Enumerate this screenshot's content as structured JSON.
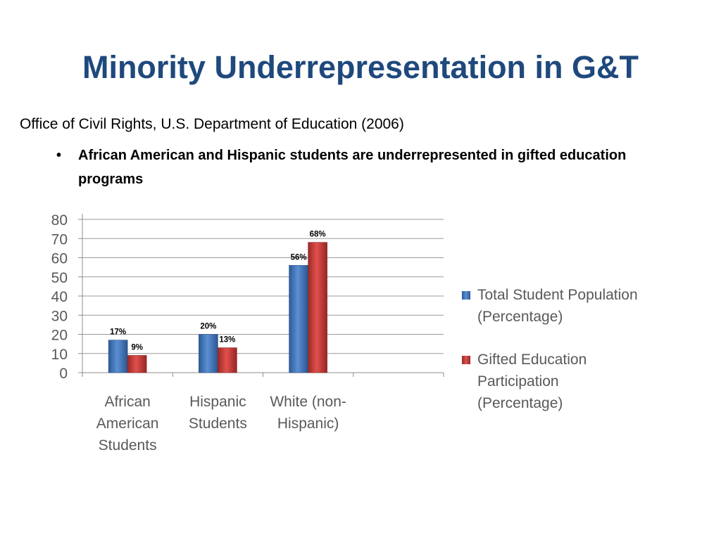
{
  "slide": {
    "title": "Minority Underrepresentation in G&T",
    "source": "Office of Civil Rights, U.S. Department of Education (2006)",
    "bullet": "African American and Hispanic students are underrepresented in gifted education programs"
  },
  "chart_data": {
    "type": "bar",
    "categories": [
      "African American Students",
      "Hispanic Students",
      "White (non-Hispanic)"
    ],
    "category_lines": [
      [
        "African",
        "American",
        "Students"
      ],
      [
        "Hispanic",
        "Students"
      ],
      [
        "White (non-",
        "Hispanic)"
      ]
    ],
    "series": [
      {
        "name": "Total Student Population (Percentage)",
        "legend_lines": [
          "Total Student Population",
          "(Percentage)"
        ],
        "values": [
          17,
          20,
          56
        ],
        "labels": [
          "17%",
          "20%",
          "56%"
        ],
        "color": "#4f81bd"
      },
      {
        "name": "Gifted Education Participation (Percentage)",
        "legend_lines": [
          "Gifted Education",
          "Participation",
          "(Percentage)"
        ],
        "values": [
          9,
          13,
          68
        ],
        "labels": [
          "9%",
          "13%",
          "68%"
        ],
        "color": "#c0504d"
      }
    ],
    "title": "",
    "xlabel": "",
    "ylabel": "",
    "ylim": [
      0,
      80
    ],
    "yticks": [
      0,
      10,
      20,
      30,
      40,
      50,
      60,
      70,
      80
    ],
    "grid": true,
    "legend": "right",
    "category_slots": 4
  }
}
